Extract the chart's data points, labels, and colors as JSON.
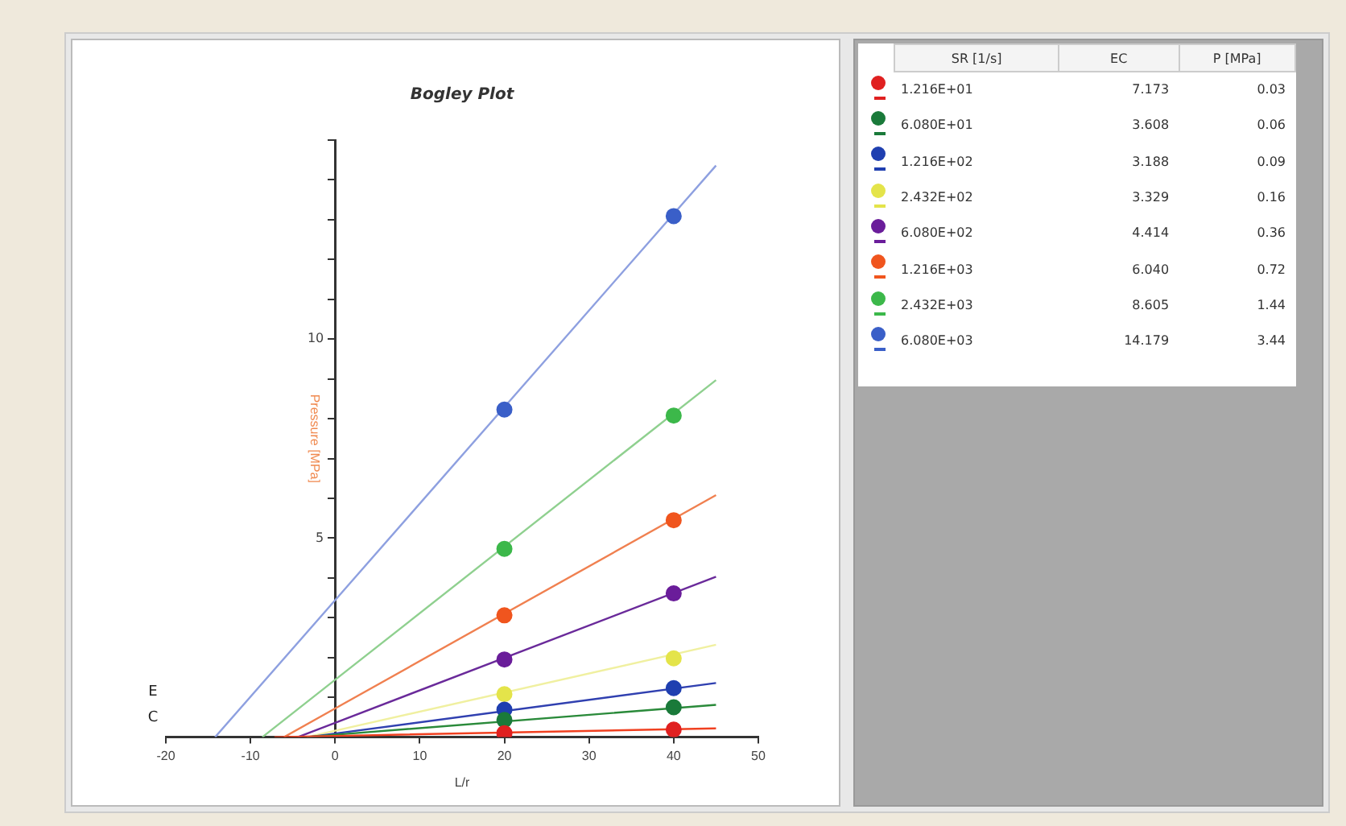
{
  "chart_data": {
    "type": "scatter",
    "title": "Bogley Plot",
    "xlabel": "L/r",
    "ylabel": "Pressure [MPa]",
    "xlim": [
      -20,
      50
    ],
    "xticks": [
      -20,
      -10,
      0,
      10,
      20,
      30,
      40,
      50
    ],
    "ylim": [
      0,
      15
    ],
    "yticks": [
      {
        "value": 1,
        "label": null
      },
      {
        "value": 2,
        "label": null
      },
      {
        "value": 3,
        "label": null
      },
      {
        "value": 4,
        "label": null
      },
      5,
      {
        "value": 6,
        "label": null
      },
      {
        "value": 7,
        "label": null
      },
      {
        "value": 8,
        "label": null
      },
      {
        "value": 9,
        "label": null
      },
      10,
      {
        "value": 11,
        "label": null
      },
      {
        "value": 12,
        "label": null
      },
      {
        "value": 13,
        "label": null
      },
      {
        "value": 14,
        "label": null
      },
      {
        "value": 15,
        "label": null
      }
    ],
    "grid": false,
    "legend": "right",
    "marker": "circle",
    "line_style": "solid",
    "series": [
      {
        "name": "1.216E+01",
        "color": "#e02020",
        "x": [
          20,
          40
        ],
        "values": [
          0.1,
          0.19
        ]
      },
      {
        "name": "6.080E+01",
        "color": "#1a7a3a",
        "x": [
          20,
          40
        ],
        "values": [
          0.43,
          0.75
        ]
      },
      {
        "name": "1.216E+02",
        "color": "#1f3fb0",
        "x": [
          20,
          40
        ],
        "values": [
          0.69,
          1.23
        ]
      },
      {
        "name": "2.432E+02",
        "color": "#e4e44a",
        "x": [
          20,
          40
        ],
        "values": [
          1.08,
          1.98
        ]
      },
      {
        "name": "6.080E+02",
        "color": "#6a1d9a",
        "x": [
          20,
          40
        ],
        "values": [
          1.95,
          3.61
        ]
      },
      {
        "name": "1.216E+03",
        "color": "#f0551e",
        "x": [
          20,
          40
        ],
        "values": [
          3.06,
          5.45
        ]
      },
      {
        "name": "2.432E+03",
        "color": "#3cb84a",
        "x": [
          20,
          40
        ],
        "values": [
          4.73,
          8.08
        ]
      },
      {
        "name": "6.080E+03",
        "color": "#3a5fc8",
        "x": [
          20,
          40
        ],
        "values": [
          8.23,
          13.09
        ]
      },
      {
        "type": "line",
        "marker": "none",
        "color": "#f04020",
        "x": [
          -7.173,
          0,
          45
        ],
        "values": [
          0,
          0.03,
          0.22
        ]
      },
      {
        "type": "line",
        "marker": "none",
        "color": "#2a8a3a",
        "x": [
          -3.608,
          0,
          45
        ],
        "values": [
          0,
          0.06,
          0.81
        ]
      },
      {
        "type": "line",
        "marker": "none",
        "color": "#3040b0",
        "x": [
          -3.188,
          0,
          45
        ],
        "values": [
          0,
          0.09,
          1.36
        ]
      },
      {
        "type": "line",
        "marker": "none",
        "color": "#f0f0a0",
        "x": [
          -3.329,
          0,
          45
        ],
        "values": [
          0,
          0.16,
          2.32
        ]
      },
      {
        "type": "line",
        "marker": "none",
        "color": "#6a2a9a",
        "x": [
          -4.414,
          0,
          45
        ],
        "values": [
          0,
          0.36,
          4.03
        ]
      },
      {
        "type": "line",
        "marker": "none",
        "color": "#f08050",
        "x": [
          -6.04,
          0,
          45
        ],
        "values": [
          0,
          0.72,
          6.08
        ]
      },
      {
        "type": "line",
        "marker": "none",
        "color": "#8fd08f",
        "x": [
          -8.605,
          0,
          45
        ],
        "values": [
          0,
          1.44,
          8.97
        ]
      },
      {
        "type": "line",
        "marker": "none",
        "color": "#8ea0e0",
        "x": [
          -14.179,
          0,
          45
        ],
        "values": [
          0,
          3.44,
          14.36
        ]
      }
    ],
    "annotations": [
      "SR [1/s]",
      "EC",
      "P [MPa]",
      "7.173",
      "0.03",
      "3.608",
      "0.06",
      "3.188",
      "0.09",
      "3.329",
      "0.16",
      "4.414",
      "0.36",
      "6.040",
      "0.72",
      "8.605",
      "1.44",
      "14.179",
      "3.44",
      "E",
      "C"
    ]
  }
}
